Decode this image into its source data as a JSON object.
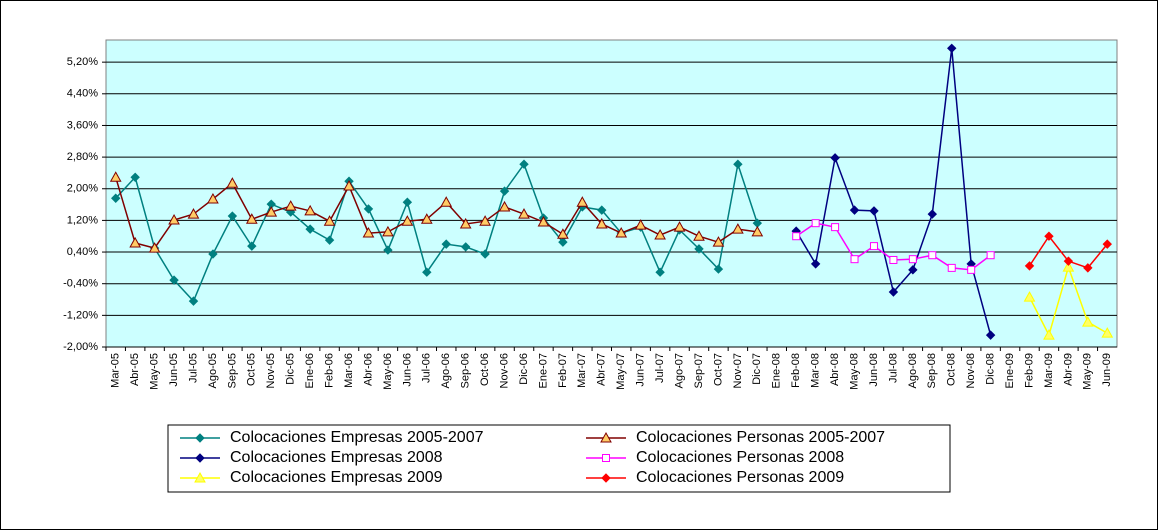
{
  "chart_data": {
    "type": "line",
    "categories": [
      "Mar-05",
      "Abr-05",
      "May-05",
      "Jun-05",
      "Jul-05",
      "Ago-05",
      "Sep-05",
      "Oct-05",
      "Nov-05",
      "Dic-05",
      "Ene-06",
      "Feb-06",
      "Mar-06",
      "Abr-06",
      "May-06",
      "Jun-06",
      "Jul-06",
      "Ago-06",
      "Sep-06",
      "Oct-06",
      "Nov-06",
      "Dic-06",
      "Ene-07",
      "Feb-07",
      "Mar-07",
      "Abr-07",
      "May-07",
      "Jun-07",
      "Jul-07",
      "Ago-07",
      "Sep-07",
      "Oct-07",
      "Nov-07",
      "Dic-07",
      "Ene-08",
      "Feb-08",
      "Mar-08",
      "Abr-08",
      "May-08",
      "Jun-08",
      "Jul-08",
      "Ago-08",
      "Sep-08",
      "Oct-08",
      "Nov-08",
      "Dic-08",
      "Ene-09",
      "Feb-09",
      "Mar-09",
      "Abr-09",
      "May-09",
      "Jun-09"
    ],
    "series": [
      {
        "name": "Colocaciones Empresas 2005-2007",
        "color": "#008080",
        "marker": "diamond",
        "marker_fill": "#008080",
        "values": [
          1.76,
          2.29,
          0.5,
          -0.31,
          -0.84,
          0.35,
          1.31,
          0.55,
          1.61,
          1.41,
          0.98,
          0.7,
          2.19,
          1.49,
          0.45,
          1.66,
          -0.11,
          0.6,
          0.53,
          0.35,
          1.94,
          2.62,
          1.26,
          0.65,
          1.54,
          1.46,
          0.88,
          1.03,
          -0.11,
          0.96,
          0.48,
          -0.03,
          2.62,
          1.13,
          null,
          null,
          null,
          null,
          null,
          null,
          null,
          null,
          null,
          null,
          null,
          null,
          null,
          null,
          null,
          null,
          null,
          null
        ]
      },
      {
        "name": "Colocaciones Personas 2005-2007",
        "color": "#800000",
        "marker": "triangle",
        "marker_fill": "#ffcc66",
        "values": [
          2.29,
          0.63,
          0.5,
          1.21,
          1.36,
          1.74,
          2.14,
          1.23,
          1.41,
          1.56,
          1.44,
          1.18,
          2.07,
          0.88,
          0.91,
          1.18,
          1.23,
          1.66,
          1.11,
          1.18,
          1.54,
          1.36,
          1.16,
          0.85,
          1.66,
          1.11,
          0.88,
          1.08,
          0.83,
          1.03,
          0.8,
          0.65,
          0.98,
          0.91,
          null,
          null,
          null,
          null,
          null,
          null,
          null,
          null,
          null,
          null,
          null,
          null,
          null,
          null,
          null,
          null,
          null,
          null
        ]
      },
      {
        "name": "Colocaciones Empresas 2008",
        "color": "#000080",
        "marker": "diamond",
        "marker_fill": "#000080",
        "values": [
          null,
          null,
          null,
          null,
          null,
          null,
          null,
          null,
          null,
          null,
          null,
          null,
          null,
          null,
          null,
          null,
          null,
          null,
          null,
          null,
          null,
          null,
          null,
          null,
          null,
          null,
          null,
          null,
          null,
          null,
          null,
          null,
          null,
          null,
          null,
          0.93,
          0.1,
          2.78,
          1.46,
          1.44,
          -0.61,
          -0.05,
          1.36,
          5.55,
          0.1,
          -1.7,
          null,
          null,
          null,
          null,
          null,
          null
        ]
      },
      {
        "name": "Colocaciones Personas 2008",
        "color": "#ff00ff",
        "marker": "square",
        "marker_fill": "#ffffff",
        "values": [
          null,
          null,
          null,
          null,
          null,
          null,
          null,
          null,
          null,
          null,
          null,
          null,
          null,
          null,
          null,
          null,
          null,
          null,
          null,
          null,
          null,
          null,
          null,
          null,
          null,
          null,
          null,
          null,
          null,
          null,
          null,
          null,
          null,
          null,
          null,
          0.8,
          1.13,
          1.03,
          0.22,
          0.55,
          0.2,
          0.22,
          0.32,
          0.0,
          -0.05,
          0.32,
          null,
          null,
          null,
          null,
          null,
          null
        ]
      },
      {
        "name": "Colocaciones Empresas 2009",
        "color": "#ffff00",
        "marker": "triangle",
        "marker_fill": "#ffff66",
        "values": [
          null,
          null,
          null,
          null,
          null,
          null,
          null,
          null,
          null,
          null,
          null,
          null,
          null,
          null,
          null,
          null,
          null,
          null,
          null,
          null,
          null,
          null,
          null,
          null,
          null,
          null,
          null,
          null,
          null,
          null,
          null,
          null,
          null,
          null,
          null,
          null,
          null,
          null,
          null,
          null,
          null,
          null,
          null,
          null,
          null,
          null,
          null,
          -0.74,
          -1.7,
          0.02,
          -1.37,
          -1.65
        ]
      },
      {
        "name": "Colocaciones Personas 2009",
        "color": "#ff0000",
        "marker": "diamond",
        "marker_fill": "#ff0000",
        "values": [
          null,
          null,
          null,
          null,
          null,
          null,
          null,
          null,
          null,
          null,
          null,
          null,
          null,
          null,
          null,
          null,
          null,
          null,
          null,
          null,
          null,
          null,
          null,
          null,
          null,
          null,
          null,
          null,
          null,
          null,
          null,
          null,
          null,
          null,
          null,
          null,
          null,
          null,
          null,
          null,
          null,
          null,
          null,
          null,
          null,
          null,
          null,
          0.05,
          0.8,
          0.17,
          0.0,
          0.6
        ]
      }
    ],
    "ylim": [
      -2,
      5.76
    ],
    "yticks": [
      {
        "value": -2,
        "label": "-2,00%"
      },
      {
        "value": -1.2,
        "label": "-1,20%"
      },
      {
        "value": -0.4,
        "label": "-0,40%"
      },
      {
        "value": 0.4,
        "label": "0,40%"
      },
      {
        "value": 1.2,
        "label": "1,20%"
      },
      {
        "value": 2,
        "label": "2,00%"
      },
      {
        "value": 2.8,
        "label": "2,80%"
      },
      {
        "value": 3.6,
        "label": "3,60%"
      },
      {
        "value": 4.4,
        "label": "4,40%"
      },
      {
        "value": 5.2,
        "label": "5,20%"
      }
    ],
    "grid": true,
    "legend": "bottom",
    "plot_background": "#ccffff"
  }
}
